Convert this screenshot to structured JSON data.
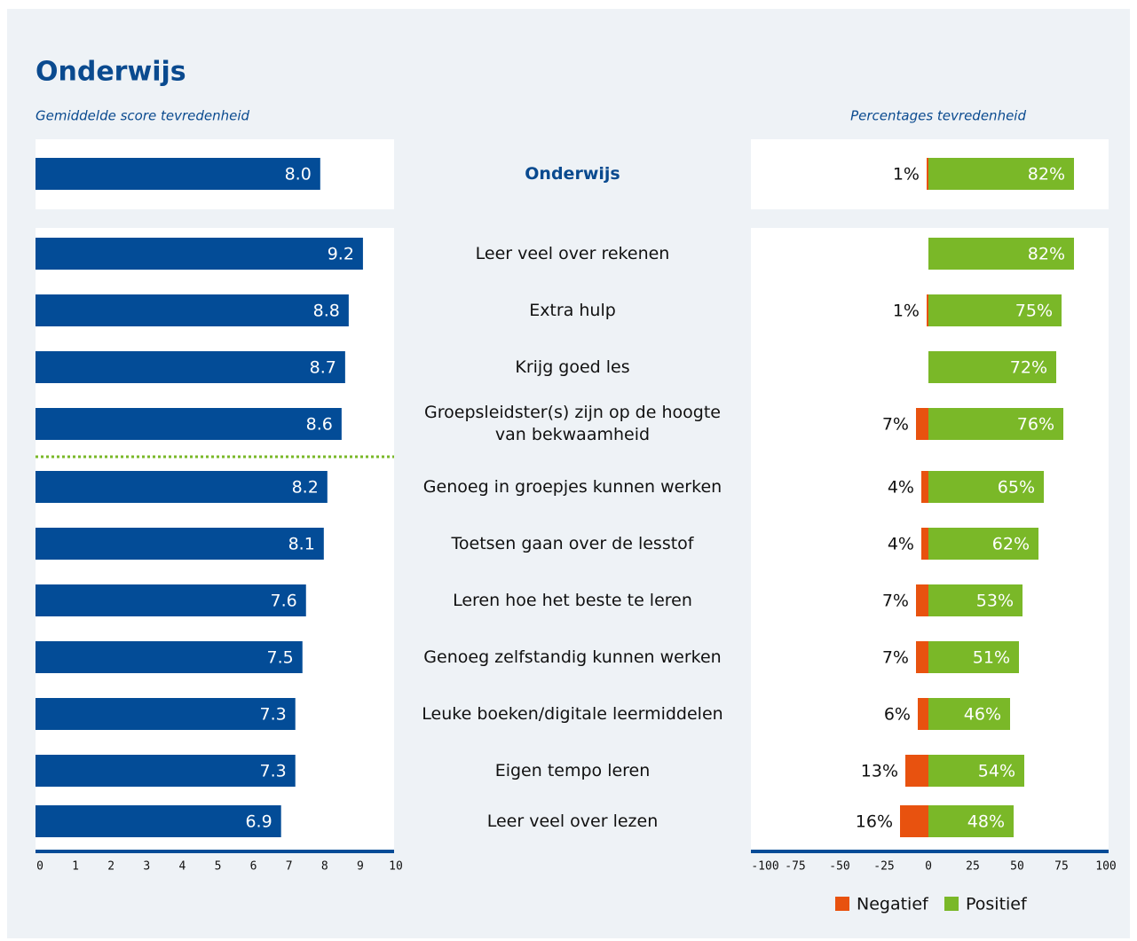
{
  "title": "Onderwijs",
  "chart_data": [
    {
      "type": "hbar",
      "subtitle": "Gemiddelde score tevredenheid",
      "categories": [
        "Onderwijs",
        "Leer veel over rekenen",
        "Extra hulp",
        "Krijg goed les",
        "Groepsleidster(s) zijn op de hoogte van bekwaamheid",
        "Genoeg in groepjes kunnen werken",
        "Toetsen gaan over de lesstof",
        "Leren hoe het beste te leren",
        "Genoeg zelfstandig kunnen werken",
        "Leuke boeken/digitale leermiddelen",
        "Eigen tempo leren",
        "Leer veel over lezen"
      ],
      "values": [
        8.0,
        9.2,
        8.8,
        8.7,
        8.6,
        8.2,
        8.1,
        7.6,
        7.5,
        7.3,
        7.3,
        6.9
      ],
      "value_labels": [
        "8.0",
        "9.2",
        "8.8",
        "8.7",
        "8.6",
        "8.2",
        "8.1",
        "7.6",
        "7.5",
        "7.3",
        "7.3",
        "6.9"
      ],
      "color": "#034c97",
      "xlim": [
        0,
        10
      ],
      "xticks": [
        0,
        1,
        2,
        3,
        4,
        5,
        6,
        7,
        8,
        9,
        10
      ]
    },
    {
      "type": "diverging",
      "subtitle": "Percentages tevredenheid",
      "series": [
        {
          "name": "Negatief",
          "color": "#e8520f",
          "values": [
            1,
            null,
            1,
            null,
            7,
            4,
            4,
            7,
            7,
            6,
            13,
            16
          ],
          "value_labels": [
            "1%",
            null,
            "1%",
            null,
            "7%",
            "4%",
            "4%",
            "7%",
            "7%",
            "6%",
            "13%",
            "16%"
          ]
        },
        {
          "name": "Positief",
          "color": "#7ab828",
          "values": [
            82,
            82,
            75,
            72,
            76,
            65,
            62,
            53,
            51,
            46,
            54,
            48
          ],
          "value_labels": [
            "82%",
            "82%",
            "75%",
            "72%",
            "76%",
            "65%",
            "62%",
            "53%",
            "51%",
            "46%",
            "54%",
            "48%"
          ]
        }
      ],
      "xlim": [
        -100,
        100
      ],
      "xticks": [
        -100,
        -75,
        -50,
        -25,
        0,
        25,
        50,
        75,
        100
      ]
    }
  ]
}
